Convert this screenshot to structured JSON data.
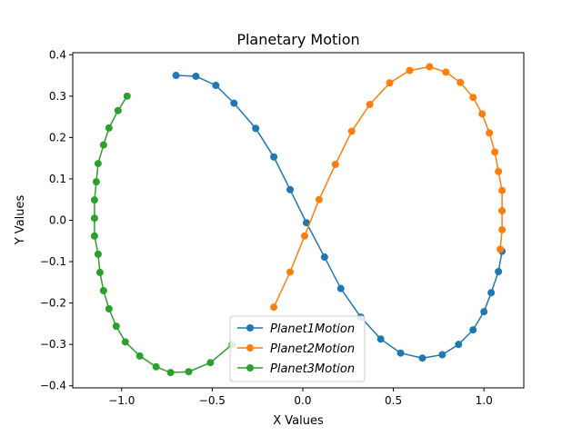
{
  "chart_data": {
    "type": "line",
    "title": "Planetary Motion",
    "xlabel": "X Values",
    "ylabel": "Y Values",
    "xlim": [
      -1.27,
      1.22
    ],
    "ylim": [
      -0.405,
      0.405
    ],
    "xticks": [
      -1.0,
      -0.5,
      0.0,
      0.5,
      1.0
    ],
    "xtick_labels": [
      "−1.0",
      "−0.5",
      "0.0",
      "0.5",
      "1.0"
    ],
    "yticks": [
      -0.4,
      -0.3,
      -0.2,
      -0.1,
      0.0,
      0.1,
      0.2,
      0.3,
      0.4
    ],
    "ytick_labels": [
      "−0.4",
      "−0.3",
      "−0.2",
      "−0.1",
      "0.0",
      "0.1",
      "0.2",
      "0.3",
      "0.4"
    ],
    "grid": false,
    "legend_position": "bottom-center",
    "series": [
      {
        "name": "Planet1Motion",
        "color": "#1f77b4",
        "x": [
          -0.7,
          -0.59,
          -0.48,
          -0.38,
          -0.26,
          -0.16,
          -0.07,
          0.02,
          0.12,
          0.21,
          0.32,
          0.43,
          0.54,
          0.66,
          0.77,
          0.86,
          0.94,
          1.0,
          1.04,
          1.08,
          1.1
        ],
        "y": [
          0.35,
          0.348,
          0.326,
          0.283,
          0.222,
          0.153,
          0.074,
          -0.006,
          -0.089,
          -0.165,
          -0.234,
          -0.287,
          -0.321,
          -0.333,
          -0.325,
          -0.3,
          -0.265,
          -0.221,
          -0.175,
          -0.124,
          -0.075
        ]
      },
      {
        "name": "Planet2Motion",
        "color": "#ff7f0e",
        "x": [
          -0.16,
          -0.07,
          0.01,
          0.09,
          0.18,
          0.27,
          0.37,
          0.48,
          0.59,
          0.7,
          0.79,
          0.87,
          0.94,
          0.99,
          1.03,
          1.06,
          1.08,
          1.1,
          1.1,
          1.1,
          1.09
        ],
        "y": [
          -0.21,
          -0.125,
          -0.038,
          0.05,
          0.135,
          0.215,
          0.28,
          0.332,
          0.362,
          0.371,
          0.358,
          0.333,
          0.297,
          0.257,
          0.211,
          0.165,
          0.118,
          0.072,
          0.023,
          -0.023,
          -0.07
        ]
      },
      {
        "name": "Planet3Motion",
        "color": "#2ca02c",
        "x": [
          -0.97,
          -1.02,
          -1.07,
          -1.1,
          -1.13,
          -1.14,
          -1.15,
          -1.15,
          -1.15,
          -1.13,
          -1.12,
          -1.1,
          -1.07,
          -1.03,
          -0.98,
          -0.9,
          -0.81,
          -0.73,
          -0.63,
          -0.51,
          -0.39
        ],
        "y": [
          0.3,
          0.265,
          0.223,
          0.182,
          0.137,
          0.093,
          0.049,
          0.005,
          -0.038,
          -0.082,
          -0.126,
          -0.17,
          -0.214,
          -0.256,
          -0.294,
          -0.328,
          -0.354,
          -0.368,
          -0.366,
          -0.344,
          -0.3
        ]
      }
    ]
  }
}
